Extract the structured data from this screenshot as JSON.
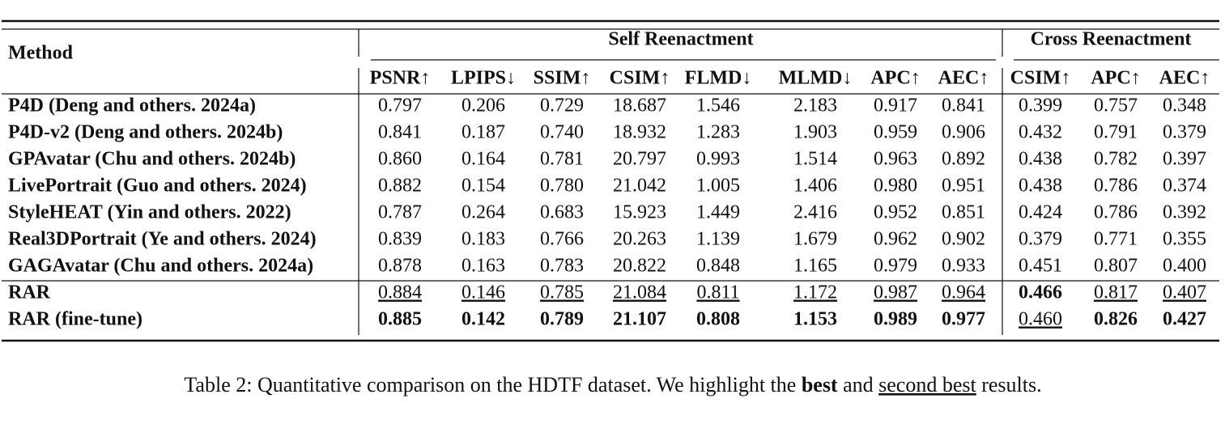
{
  "table": {
    "header": {
      "method": "Method",
      "groups": [
        "Self Reenactment",
        "Cross Reenactment"
      ],
      "columns": [
        "PSNR↑",
        "LPIPS↓",
        "SSIM↑",
        "CSIM↑",
        "FLMD↓",
        "MLMD↓",
        "APC↑",
        "AEC↑",
        "CSIM↑",
        "APC↑",
        "AEC↑"
      ]
    },
    "rows": [
      [
        "P4D (Deng and others. 2024a)",
        "0.797",
        "0.206",
        "0.729",
        "18.687",
        "1.546",
        "2.183",
        "0.917",
        "0.841",
        "0.399",
        "0.757",
        "0.348"
      ],
      [
        "P4D-v2 (Deng and others. 2024b)",
        "0.841",
        "0.187",
        "0.740",
        "18.932",
        "1.283",
        "1.903",
        "0.959",
        "0.906",
        "0.432",
        "0.791",
        "0.379"
      ],
      [
        "GPAvatar (Chu and others. 2024b)",
        "0.860",
        "0.164",
        "0.781",
        "20.797",
        "0.993",
        "1.514",
        "0.963",
        "0.892",
        "0.438",
        "0.782",
        "0.397"
      ],
      [
        "LivePortrait (Guo and others. 2024)",
        "0.882",
        "0.154",
        "0.780",
        "21.042",
        "1.005",
        "1.406",
        "0.980",
        "0.951",
        "0.438",
        "0.786",
        "0.374"
      ],
      [
        "StyleHEAT (Yin and others. 2022)",
        "0.787",
        "0.264",
        "0.683",
        "15.923",
        "1.449",
        "2.416",
        "0.952",
        "0.851",
        "0.424",
        "0.786",
        "0.392"
      ],
      [
        "Real3DPortrait (Ye and others. 2024)",
        "0.839",
        "0.183",
        "0.766",
        "20.263",
        "1.139",
        "1.679",
        "0.962",
        "0.902",
        "0.379",
        "0.771",
        "0.355"
      ],
      [
        "GAGAvatar (Chu and others. 2024a)",
        "0.878",
        "0.163",
        "0.783",
        "20.822",
        "0.848",
        "1.165",
        "0.979",
        "0.933",
        "0.451",
        "0.807",
        "0.400"
      ],
      [
        "RAR",
        "0.884",
        "0.146",
        "0.785",
        "21.084",
        "0.811",
        "1.172",
        "0.987",
        "0.964",
        "0.466",
        "0.817",
        "0.407"
      ],
      [
        "RAR (fine-tune)",
        "0.885",
        "0.142",
        "0.789",
        "21.107",
        "0.808",
        "1.153",
        "0.989",
        "0.977",
        "0.460",
        "0.826",
        "0.427"
      ]
    ]
  },
  "caption": [
    "Table 2: Quantitative comparison on the HDTF dataset. We highlight the",
    "best",
    "and",
    "second best",
    "results."
  ]
}
